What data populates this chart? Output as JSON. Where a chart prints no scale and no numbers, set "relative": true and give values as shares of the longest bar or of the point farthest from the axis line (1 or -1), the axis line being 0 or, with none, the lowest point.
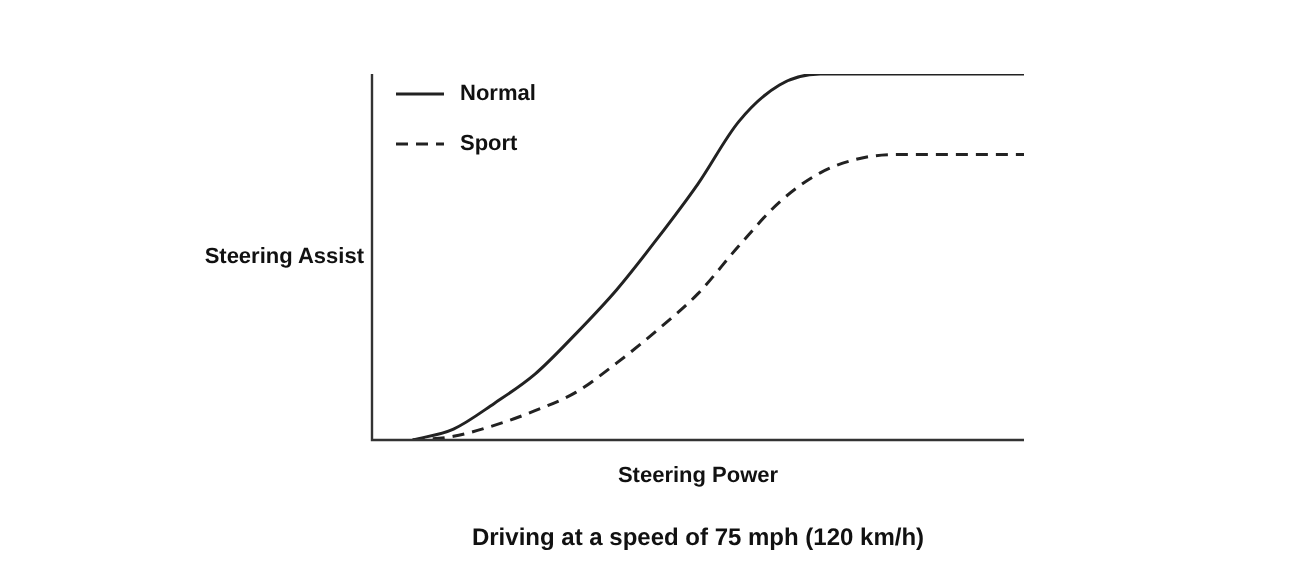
{
  "chart_data": {
    "type": "line",
    "title": "Driving at a speed of 75 mph (120 km/h)",
    "xlabel": "Steering Power",
    "ylabel": "Steering Assist",
    "relative": true,
    "legend": "top left",
    "marker": "none",
    "categories": [
      null,
      null,
      null,
      null,
      null,
      null,
      null,
      null,
      null,
      null,
      null,
      null,
      null,
      null,
      null,
      null,
      null
    ],
    "series": [
      {
        "name": "Normal",
        "color": "#222222",
        "line_style": "solid",
        "values": [
          null,
          0,
          0.03,
          0.1,
          0.18,
          0.29,
          0.41,
          0.55,
          0.7,
          0.87,
          0.97,
          1,
          1,
          1,
          1,
          1,
          1
        ]
      },
      {
        "name": "Sport",
        "color": "#222222",
        "line_style": "dashed",
        "values": [
          null,
          0,
          0.01,
          0.04,
          0.08,
          0.13,
          0.21,
          0.3,
          0.4,
          0.53,
          0.65,
          0.73,
          0.77,
          0.78,
          0.78,
          0.78,
          0.78
        ]
      }
    ]
  }
}
